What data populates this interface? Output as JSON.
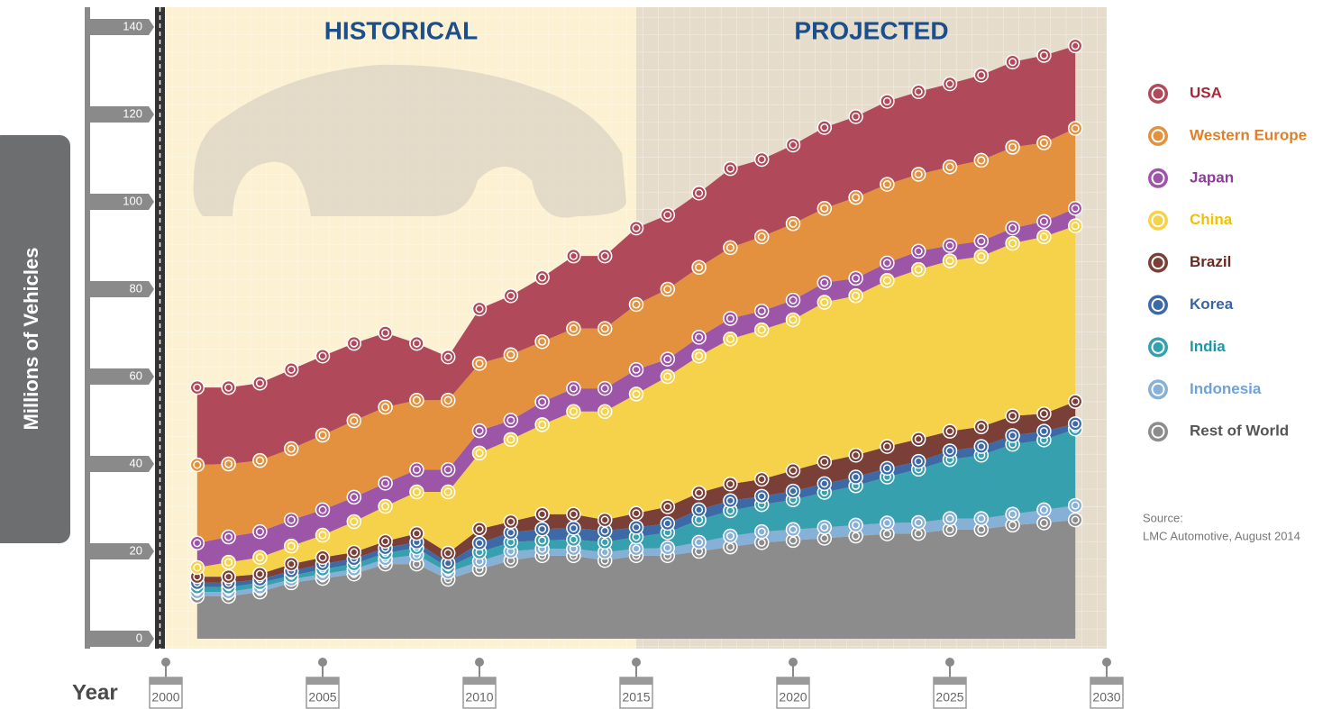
{
  "chart_data": {
    "type": "stacked_area",
    "y_label": "Millions of Vehicles",
    "x_label": "Year",
    "annotations": [
      "HISTORICAL",
      "PROJECTED"
    ],
    "projected_from": 2015,
    "source_label": "Source:",
    "source": "LMC Automotive, August 2014",
    "xlim": [
      2000,
      2030
    ],
    "xticks": [
      2000,
      2005,
      2010,
      2015,
      2020,
      2025,
      2030
    ],
    "ylim": [
      0,
      140
    ],
    "yticks": [
      0,
      20,
      40,
      60,
      80,
      100,
      120,
      140
    ],
    "legend": "right",
    "x": [
      2001,
      2002,
      2003,
      2004,
      2005,
      2006,
      2007,
      2008,
      2009,
      2010,
      2011,
      2012,
      2013,
      2014,
      2015,
      2016,
      2017,
      2018,
      2019,
      2020,
      2021,
      2022,
      2023,
      2024,
      2025,
      2026,
      2027,
      2028,
      2029
    ],
    "series": [
      {
        "name": "USA",
        "color": "#b04a5a",
        "text_color": "#a8263a",
        "values": [
          17.7,
          17.5,
          17.7,
          18.1,
          18.1,
          17.7,
          17.0,
          13.0,
          9.9,
          12.5,
          13.5,
          14.7,
          16.6,
          16.6,
          17.5,
          17.0,
          17.0,
          18.1,
          17.7,
          18.0,
          18.5,
          18.5,
          19.0,
          18.9,
          19.0,
          19.5,
          19.5,
          20.0,
          18.9
        ]
      },
      {
        "name": "Western Europe",
        "color": "#e3913f",
        "text_color": "#e07f26",
        "values": [
          17.9,
          16.7,
          16.3,
          16.3,
          17.1,
          17.5,
          17.4,
          15.9,
          15.9,
          15.4,
          15.0,
          13.8,
          13.7,
          13.7,
          14.9,
          16.0,
          16.0,
          16.2,
          17.0,
          17.5,
          17.0,
          18.5,
          18.0,
          17.6,
          18.0,
          18.5,
          18.5,
          18.0,
          18.3
        ]
      },
      {
        "name": "Japan",
        "color": "#9d55a8",
        "text_color": "#8e3c9a",
        "values": [
          5.6,
          5.8,
          5.9,
          6.0,
          5.8,
          5.6,
          5.3,
          5.1,
          5.1,
          5.1,
          4.4,
          5.2,
          5.3,
          5.3,
          5.6,
          4.0,
          4.3,
          4.7,
          4.3,
          4.5,
          4.5,
          4.0,
          4.0,
          4.2,
          3.5,
          3.5,
          3.5,
          3.5,
          4.0
        ]
      },
      {
        "name": "China",
        "color": "#f6d24a",
        "text_color": "#f2c200",
        "values": [
          2.1,
          3.3,
          3.8,
          4.1,
          5.1,
          7.0,
          8.0,
          9.5,
          14.0,
          17.4,
          18.8,
          20.5,
          23.5,
          24.8,
          27.3,
          29.8,
          31.3,
          33.2,
          34.2,
          34.5,
          36.5,
          36.5,
          38.0,
          38.8,
          39.0,
          39.0,
          39.5,
          40.5,
          40.2
        ]
      },
      {
        "name": "Brazil",
        "color": "#7a4038",
        "text_color": "#6b2a20",
        "values": [
          1.4,
          1.4,
          1.2,
          1.6,
          1.5,
          1.5,
          1.5,
          2.0,
          2.3,
          3.2,
          2.5,
          3.4,
          3.2,
          2.5,
          3.2,
          3.8,
          3.9,
          3.8,
          3.9,
          4.7,
          5.0,
          5.0,
          5.0,
          5.1,
          4.5,
          4.5,
          4.5,
          4.0,
          5.1
        ]
      },
      {
        "name": "Korea",
        "color": "#3d6aa6",
        "text_color": "#3a63a0",
        "values": [
          1.0,
          1.0,
          0.8,
          1.1,
          1.2,
          1.2,
          1.2,
          1.3,
          1.0,
          2.1,
          2.2,
          2.6,
          2.6,
          2.6,
          2.2,
          2.1,
          2.3,
          2.3,
          1.9,
          2.0,
          2.0,
          2.0,
          2.0,
          1.8,
          2.0,
          2.0,
          2.0,
          2.0,
          1.2
        ]
      },
      {
        "name": "India",
        "color": "#36a0ae",
        "text_color": "#1a9aa8",
        "values": [
          1.1,
          1.1,
          1.0,
          0.8,
          1.1,
          1.2,
          1.3,
          1.6,
          1.1,
          2.1,
          2.1,
          1.9,
          2.1,
          2.3,
          2.7,
          3.5,
          5.1,
          5.8,
          6.2,
          6.8,
          8.0,
          9.0,
          10.5,
          12.2,
          13.5,
          14.5,
          16.0,
          16.0,
          17.5
        ]
      },
      {
        "name": "Indonesia",
        "color": "#86b0d6",
        "text_color": "#6fa3d6",
        "values": [
          1.0,
          1.0,
          1.1,
          0.8,
          1.0,
          1.1,
          1.2,
          2.1,
          1.6,
          1.8,
          2.1,
          1.6,
          1.6,
          1.9,
          1.6,
          1.8,
          2.1,
          2.5,
          2.5,
          2.5,
          2.5,
          2.5,
          2.5,
          2.5,
          2.5,
          2.5,
          2.5,
          3.0,
          3.3
        ]
      },
      {
        "name": "Rest of World",
        "color": "#8c8c8c",
        "text_color": "#555555",
        "values": [
          9.7,
          9.7,
          10.7,
          12.8,
          13.8,
          14.8,
          17.1,
          17.1,
          13.6,
          15.9,
          17.9,
          19.0,
          19.0,
          17.9,
          19.0,
          19.0,
          20.0,
          21.0,
          22.0,
          22.5,
          23.0,
          23.5,
          24.0,
          24.1,
          25.0,
          25.0,
          26.0,
          26.5,
          27.2
        ]
      }
    ]
  }
}
